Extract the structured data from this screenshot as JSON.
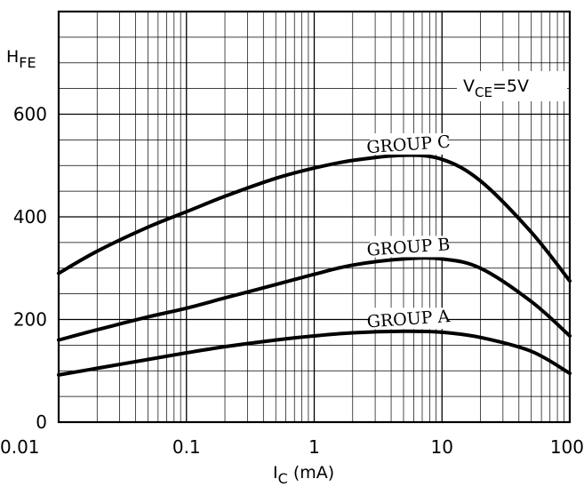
{
  "chart_data": {
    "type": "line",
    "title": "",
    "xlabel": {
      "main": "I",
      "sub": "C",
      "unit": " (mA)"
    },
    "ylabel": {
      "main": "H",
      "sub": "FE"
    },
    "annotation": {
      "main": "V",
      "sub": "CE",
      "rest": "=5V"
    },
    "x_scale": "log",
    "xlim": [
      0.01,
      100
    ],
    "ylim": [
      0,
      800
    ],
    "x_ticks": [
      {
        "value": 0.01,
        "label": "0.01"
      },
      {
        "value": 0.1,
        "label": "0.1"
      },
      {
        "value": 1,
        "label": "1"
      },
      {
        "value": 10,
        "label": "10"
      },
      {
        "value": 100,
        "label": "100"
      }
    ],
    "y_ticks": [
      {
        "value": 0,
        "label": "0"
      },
      {
        "value": 200,
        "label": "200"
      },
      {
        "value": 400,
        "label": "400"
      },
      {
        "value": 600,
        "label": "600"
      }
    ],
    "grid": true,
    "series": [
      {
        "name": "GROUP C",
        "x": [
          0.01,
          0.02,
          0.05,
          0.1,
          0.2,
          0.5,
          1,
          2,
          5,
          10,
          20,
          50,
          100
        ],
        "y": [
          290,
          333,
          380,
          410,
          440,
          475,
          495,
          510,
          520,
          512,
          470,
          370,
          275
        ]
      },
      {
        "name": "GROUP B",
        "x": [
          0.01,
          0.02,
          0.05,
          0.1,
          0.2,
          0.5,
          1,
          2,
          5,
          10,
          20,
          50,
          100
        ],
        "y": [
          160,
          180,
          205,
          222,
          242,
          268,
          288,
          306,
          318,
          318,
          300,
          235,
          168
        ]
      },
      {
        "name": "GROUP A",
        "x": [
          0.01,
          0.02,
          0.05,
          0.1,
          0.2,
          0.5,
          1,
          2,
          5,
          10,
          20,
          50,
          100
        ],
        "y": [
          92,
          105,
          122,
          135,
          147,
          160,
          168,
          174,
          177,
          175,
          165,
          138,
          95
        ]
      }
    ]
  }
}
